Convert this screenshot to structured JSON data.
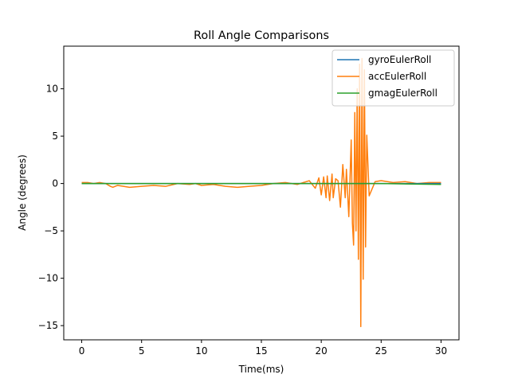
{
  "chart_data": {
    "type": "line",
    "title": "Roll Angle Comparisons",
    "xlabel": "Time(ms)",
    "ylabel": "Angle (degrees)",
    "xlim": [
      -1.5,
      31.5
    ],
    "ylim": [
      -16.5,
      14.5
    ],
    "xticks": [
      0,
      5,
      10,
      15,
      20,
      25,
      30
    ],
    "xtick_labels": [
      "0",
      "5",
      "10",
      "15",
      "20",
      "25",
      "30"
    ],
    "yticks": [
      -15,
      -10,
      -5,
      0,
      5,
      10
    ],
    "ytick_labels": [
      "−15",
      "−10",
      "−5",
      "0",
      "5",
      "10"
    ],
    "grid": false,
    "legend_position": "top-right",
    "series": [
      {
        "name": "gyroEulerRoll",
        "color": "#1f77b4",
        "x": [
          0,
          5,
          10,
          15,
          20,
          25,
          30
        ],
        "y": [
          0,
          0,
          0,
          0,
          0,
          0,
          0
        ]
      },
      {
        "name": "accEulerRoll",
        "color": "#ff7f0e",
        "x": [
          0,
          0.5,
          1,
          1.5,
          2,
          2.4,
          2.6,
          3,
          4,
          5,
          6,
          7,
          8,
          9,
          9.5,
          10,
          11,
          12,
          13,
          14,
          15,
          16,
          17,
          18,
          19,
          19.5,
          19.8,
          20,
          20.2,
          20.4,
          20.5,
          20.7,
          20.9,
          21,
          21.2,
          21.4,
          21.6,
          21.8,
          22,
          22.1,
          22.3,
          22.5,
          22.6,
          22.7,
          22.8,
          22.9,
          23.0,
          23.1,
          23.2,
          23.3,
          23.4,
          23.5,
          23.6,
          23.7,
          23.8,
          24,
          24.5,
          25,
          26,
          27,
          28,
          29,
          30
        ],
        "y": [
          0.1,
          0.1,
          0.0,
          0.1,
          0.0,
          -0.3,
          -0.4,
          -0.2,
          -0.4,
          -0.3,
          -0.2,
          -0.3,
          0.0,
          -0.1,
          0.0,
          -0.2,
          -0.1,
          -0.3,
          -0.4,
          -0.3,
          -0.2,
          0.0,
          0.1,
          -0.1,
          0.3,
          -0.5,
          0.6,
          -1.2,
          0.7,
          -1.5,
          0.8,
          -1.8,
          1.0,
          -1.5,
          0.5,
          0.3,
          -2.5,
          2.0,
          -1.5,
          1.5,
          -3.5,
          4.6,
          -4.2,
          -6.5,
          7.5,
          -5.0,
          10.0,
          -8.0,
          12.6,
          -15.1,
          13.2,
          -10.1,
          12.0,
          -6.7,
          5.1,
          -1.3,
          0.2,
          0.3,
          0.1,
          0.2,
          0.0,
          0.1,
          0.1
        ]
      },
      {
        "name": "gmagEulerRoll",
        "color": "#2ca02c",
        "x": [
          0,
          5,
          10,
          15,
          20,
          25,
          30
        ],
        "y": [
          0.0,
          0.0,
          0.0,
          0.0,
          0.0,
          0.0,
          -0.1
        ]
      }
    ]
  }
}
